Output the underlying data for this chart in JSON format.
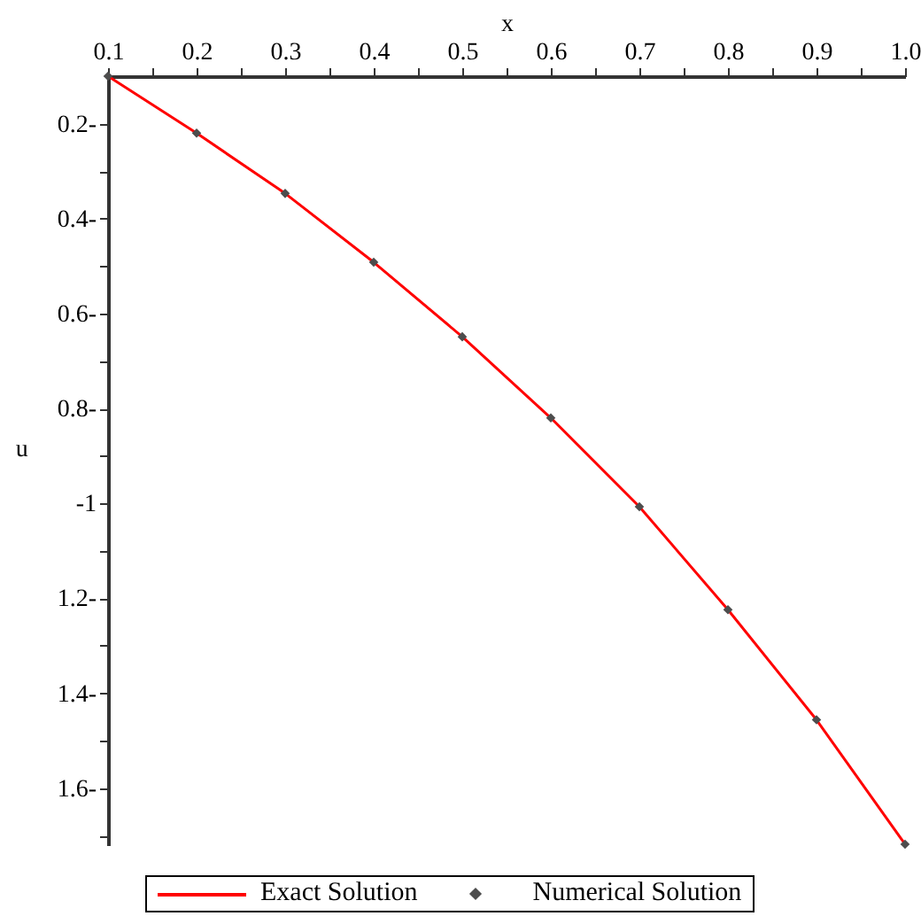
{
  "chart_data": {
    "type": "line",
    "xlabel": "x",
    "ylabel": "u",
    "x": [
      0.1,
      0.2,
      0.3,
      0.4,
      0.5,
      0.6,
      0.7,
      0.8,
      0.9,
      1.0
    ],
    "series": [
      {
        "name": "Exact Solution",
        "type": "line",
        "color": "#ff0000",
        "line_style": "solid",
        "values": [
          -0.1,
          -0.22,
          -0.347,
          -0.492,
          -0.649,
          -0.82,
          -1.007,
          -1.224,
          -1.456,
          -1.718
        ]
      },
      {
        "name": "Numerical Solution",
        "type": "scatter",
        "color": "#4d4d4d",
        "marker": "diamond",
        "values": [
          -0.1,
          -0.22,
          -0.347,
          -0.492,
          -0.649,
          -0.82,
          -1.007,
          -1.224,
          -1.456,
          -1.718
        ]
      }
    ],
    "xlim": [
      0.1,
      1.0
    ],
    "xticks": [
      0.1,
      {
        "value": 0.15,
        "label": null
      },
      0.2,
      {
        "value": 0.25,
        "label": null
      },
      0.3,
      {
        "value": 0.35,
        "label": null
      },
      0.4,
      {
        "value": 0.45,
        "label": null
      },
      0.5,
      {
        "value": 0.55,
        "label": null
      },
      0.6,
      {
        "value": 0.65,
        "label": null
      },
      0.7,
      {
        "value": 0.75,
        "label": null
      },
      0.8,
      {
        "value": 0.85,
        "label": null
      },
      0.9,
      {
        "value": 0.95,
        "label": null
      },
      {
        "value": 1.0,
        "label": "1.0"
      }
    ],
    "ylim": [
      -1.72,
      -0.1
    ],
    "yticks": [
      {
        "value": -0.2,
        "label": "0.2-"
      },
      {
        "value": -0.3,
        "label": null
      },
      {
        "value": -0.4,
        "label": "0.4-"
      },
      {
        "value": -0.5,
        "label": null
      },
      {
        "value": -0.6,
        "label": "0.6-"
      },
      {
        "value": -0.7,
        "label": null
      },
      {
        "value": -0.8,
        "label": "0.8-"
      },
      {
        "value": -0.9,
        "label": null
      },
      {
        "value": -1,
        "label": "-1"
      },
      {
        "value": -1.1,
        "label": null
      },
      {
        "value": -1.2,
        "label": "1.2-"
      },
      {
        "value": -1.3,
        "label": null
      },
      {
        "value": -1.4,
        "label": "1.4-"
      },
      {
        "value": -1.5,
        "label": null
      },
      {
        "value": -1.6,
        "label": "1.6-"
      },
      {
        "value": -1.7,
        "label": null
      }
    ],
    "grid": false,
    "legend": "bottom"
  }
}
